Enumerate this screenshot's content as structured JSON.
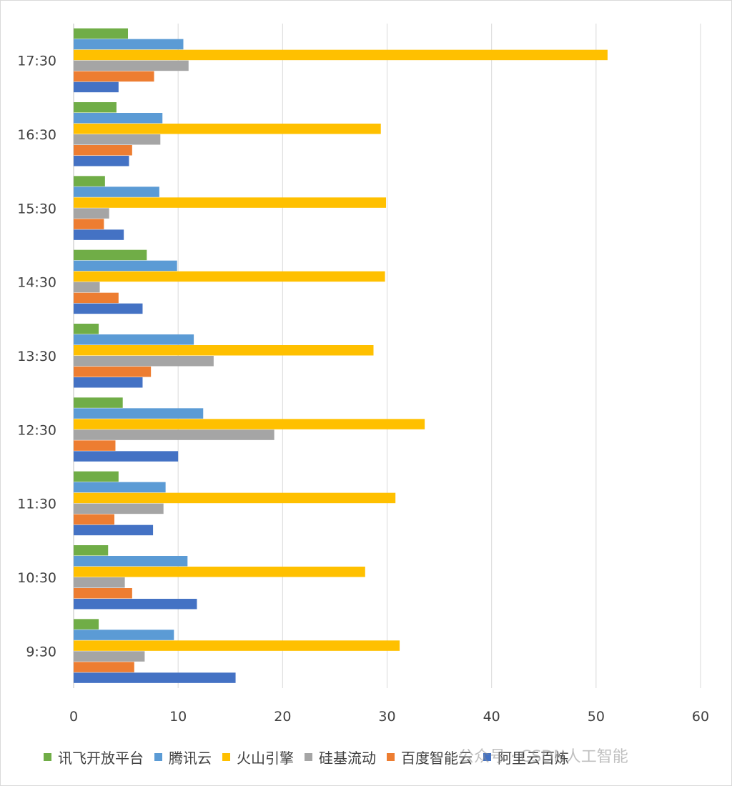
{
  "chart_data": {
    "type": "bar",
    "orientation": "horizontal",
    "categories": [
      "9:30",
      "10:30",
      "11:30",
      "12:30",
      "13:30",
      "14:30",
      "15:30",
      "16:30",
      "17:30"
    ],
    "series": [
      {
        "name": "阿里云百炼",
        "color": "#4472C4",
        "values": [
          15.5,
          11.8,
          7.6,
          10.0,
          6.6,
          6.6,
          4.8,
          5.3,
          4.3
        ]
      },
      {
        "name": "百度智能云",
        "color": "#ED7D31",
        "values": [
          5.8,
          5.6,
          3.9,
          4.0,
          7.4,
          4.3,
          2.9,
          5.6,
          7.7
        ]
      },
      {
        "name": "硅基流动",
        "color": "#A5A5A5",
        "values": [
          6.8,
          4.9,
          8.6,
          19.2,
          13.4,
          2.5,
          3.4,
          8.3,
          11.0
        ]
      },
      {
        "name": "火山引擎",
        "color": "#FFC000",
        "values": [
          31.2,
          27.9,
          30.8,
          33.6,
          28.7,
          29.8,
          29.9,
          29.4,
          51.1
        ]
      },
      {
        "name": "腾讯云",
        "color": "#5B9BD5",
        "values": [
          9.6,
          10.9,
          8.8,
          12.4,
          11.5,
          9.9,
          8.2,
          8.5,
          10.5
        ]
      },
      {
        "name": "讯飞开放平台",
        "color": "#70AD47",
        "values": [
          2.4,
          3.3,
          4.3,
          4.7,
          2.4,
          7.0,
          3.0,
          4.1,
          5.2
        ]
      }
    ],
    "x_ticks": [
      "0",
      "10",
      "20",
      "30",
      "40",
      "50",
      "60"
    ],
    "xlim": [
      0,
      60
    ],
    "grid": true,
    "legend_position": "bottom",
    "legend_order": [
      "讯飞开放平台",
      "腾讯云",
      "火山引擎",
      "硅基流动",
      "百度智能云",
      "阿里云百炼"
    ]
  },
  "watermark": "公众号 · CSDN人工智能"
}
